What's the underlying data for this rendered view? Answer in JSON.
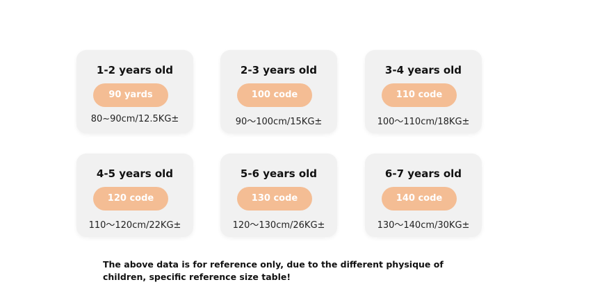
{
  "cards": [
    {
      "age": "1-2 years old",
      "size": "90 yards",
      "measure": "80~90cm/12.5KG±"
    },
    {
      "age": "2-3 years old",
      "size": "100 code",
      "measure": "90～100cm/15KG±"
    },
    {
      "age": "3-4 years old",
      "size": "110 code",
      "measure": "100～110cm/18KG±"
    },
    {
      "age": "4-5 years old",
      "size": "120 code",
      "measure": "110～120cm/22KG±"
    },
    {
      "age": "5-6 years old",
      "size": "130 code",
      "measure": "120～130cm/26KG±"
    },
    {
      "age": "6-7 years old",
      "size": "140 code",
      "measure": "130～140cm/30KG±"
    }
  ],
  "footnote": "The above data is for reference only, due to the different physique of children, specific reference size table!"
}
